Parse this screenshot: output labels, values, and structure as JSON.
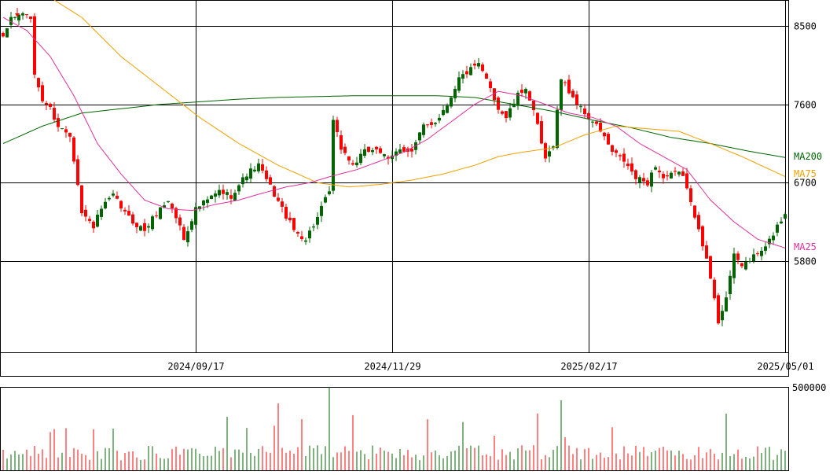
{
  "chart_data": {
    "type": "candlestick",
    "price_axis": {
      "ylim": [
        4750,
        8800
      ],
      "ticks": [
        {
          "value": 8500,
          "label": "8500"
        },
        {
          "value": 7600,
          "label": "7600"
        },
        {
          "value": 6700,
          "label": "6700"
        },
        {
          "value": 5800,
          "label": "5800"
        }
      ]
    },
    "date_axis": {
      "ticks": [
        {
          "index": 49,
          "label": "2024/09/17"
        },
        {
          "index": 99,
          "label": "2024/11/29"
        },
        {
          "index": 149,
          "label": "2025/02/17"
        },
        {
          "index": 199,
          "label": "2025/05/01"
        }
      ]
    },
    "volume_axis": {
      "ylim": [
        0,
        500000
      ],
      "tick_label": "500000"
    },
    "grid": true,
    "colors": {
      "up": "#006400",
      "down": "#ff0000",
      "ma25": "#e0309a",
      "ma75": "#f0a000",
      "ma200": "#006400",
      "grid": "#000000"
    },
    "ma_legend": [
      {
        "label": "MA200",
        "value": 7000,
        "color": "#006400"
      },
      {
        "label": "MA75",
        "value": 6800,
        "color": "#f0a000"
      },
      {
        "label": "MA25",
        "value": 5960,
        "color": "#e0309a"
      }
    ],
    "anchors": [
      [
        0,
        8350
      ],
      [
        2,
        8600
      ],
      [
        6,
        8650
      ],
      [
        7,
        8550
      ],
      [
        8,
        7950
      ],
      [
        10,
        7650
      ],
      [
        12,
        7550
      ],
      [
        14,
        7350
      ],
      [
        17,
        7250
      ],
      [
        19,
        6700
      ],
      [
        20,
        6350
      ],
      [
        23,
        6200
      ],
      [
        25,
        6400
      ],
      [
        28,
        6550
      ],
      [
        31,
        6350
      ],
      [
        33,
        6250
      ],
      [
        36,
        6150
      ],
      [
        39,
        6350
      ],
      [
        42,
        6500
      ],
      [
        45,
        6200
      ],
      [
        46,
        6050
      ],
      [
        49,
        6400
      ],
      [
        52,
        6500
      ],
      [
        55,
        6600
      ],
      [
        58,
        6550
      ],
      [
        62,
        6800
      ],
      [
        65,
        6900
      ],
      [
        68,
        6650
      ],
      [
        71,
        6400
      ],
      [
        74,
        6150
      ],
      [
        77,
        6050
      ],
      [
        80,
        6300
      ],
      [
        83,
        6600
      ],
      [
        84,
        7400
      ],
      [
        86,
        7100
      ],
      [
        89,
        6900
      ],
      [
        92,
        7050
      ],
      [
        95,
        7100
      ],
      [
        98,
        6950
      ],
      [
        101,
        7100
      ],
      [
        104,
        7050
      ],
      [
        107,
        7350
      ],
      [
        110,
        7400
      ],
      [
        113,
        7600
      ],
      [
        116,
        7900
      ],
      [
        119,
        8000
      ],
      [
        121,
        8050
      ],
      [
        124,
        7800
      ],
      [
        126,
        7550
      ],
      [
        128,
        7450
      ],
      [
        131,
        7700
      ],
      [
        133,
        7800
      ],
      [
        136,
        7350
      ],
      [
        138,
        6950
      ],
      [
        140,
        7150
      ],
      [
        142,
        7900
      ],
      [
        144,
        7750
      ],
      [
        147,
        7550
      ],
      [
        150,
        7400
      ],
      [
        152,
        7300
      ],
      [
        155,
        7050
      ],
      [
        158,
        6950
      ],
      [
        161,
        6750
      ],
      [
        164,
        6700
      ],
      [
        166,
        6900
      ],
      [
        168,
        6750
      ],
      [
        171,
        6800
      ],
      [
        173,
        6800
      ],
      [
        175,
        6450
      ],
      [
        177,
        6200
      ],
      [
        180,
        5600
      ],
      [
        182,
        5100
      ],
      [
        184,
        5400
      ],
      [
        186,
        5850
      ],
      [
        188,
        5750
      ],
      [
        191,
        5850
      ],
      [
        194,
        5950
      ],
      [
        197,
        6200
      ],
      [
        199,
        6350
      ]
    ],
    "ma25": [
      [
        0,
        8600
      ],
      [
        6,
        8450
      ],
      [
        12,
        8150
      ],
      [
        18,
        7700
      ],
      [
        24,
        7150
      ],
      [
        30,
        6800
      ],
      [
        36,
        6500
      ],
      [
        42,
        6400
      ],
      [
        48,
        6380
      ],
      [
        54,
        6450
      ],
      [
        60,
        6500
      ],
      [
        66,
        6580
      ],
      [
        72,
        6650
      ],
      [
        78,
        6700
      ],
      [
        84,
        6780
      ],
      [
        90,
        6850
      ],
      [
        96,
        6950
      ],
      [
        102,
        7050
      ],
      [
        108,
        7200
      ],
      [
        114,
        7400
      ],
      [
        120,
        7600
      ],
      [
        126,
        7750
      ],
      [
        132,
        7700
      ],
      [
        138,
        7600
      ],
      [
        144,
        7500
      ],
      [
        150,
        7450
      ],
      [
        156,
        7350
      ],
      [
        162,
        7150
      ],
      [
        168,
        7000
      ],
      [
        174,
        6850
      ],
      [
        180,
        6500
      ],
      [
        186,
        6250
      ],
      [
        192,
        6050
      ],
      [
        199,
        5950
      ]
    ],
    "ma75": [
      [
        13,
        8800
      ],
      [
        20,
        8600
      ],
      [
        30,
        8150
      ],
      [
        40,
        7800
      ],
      [
        50,
        7450
      ],
      [
        60,
        7150
      ],
      [
        70,
        6900
      ],
      [
        80,
        6700
      ],
      [
        88,
        6650
      ],
      [
        96,
        6680
      ],
      [
        104,
        6730
      ],
      [
        112,
        6800
      ],
      [
        120,
        6900
      ],
      [
        126,
        7000
      ],
      [
        132,
        7050
      ],
      [
        140,
        7100
      ],
      [
        148,
        7250
      ],
      [
        156,
        7350
      ],
      [
        164,
        7320
      ],
      [
        172,
        7290
      ],
      [
        180,
        7150
      ],
      [
        188,
        7000
      ],
      [
        199,
        6770
      ]
    ],
    "ma200": [
      [
        0,
        7150
      ],
      [
        10,
        7350
      ],
      [
        20,
        7500
      ],
      [
        30,
        7550
      ],
      [
        40,
        7600
      ],
      [
        50,
        7630
      ],
      [
        60,
        7660
      ],
      [
        70,
        7680
      ],
      [
        80,
        7690
      ],
      [
        90,
        7700
      ],
      [
        100,
        7700
      ],
      [
        110,
        7700
      ],
      [
        120,
        7680
      ],
      [
        130,
        7600
      ],
      [
        140,
        7520
      ],
      [
        150,
        7420
      ],
      [
        160,
        7330
      ],
      [
        170,
        7220
      ],
      [
        180,
        7150
      ],
      [
        190,
        7060
      ],
      [
        199,
        6990
      ]
    ]
  }
}
